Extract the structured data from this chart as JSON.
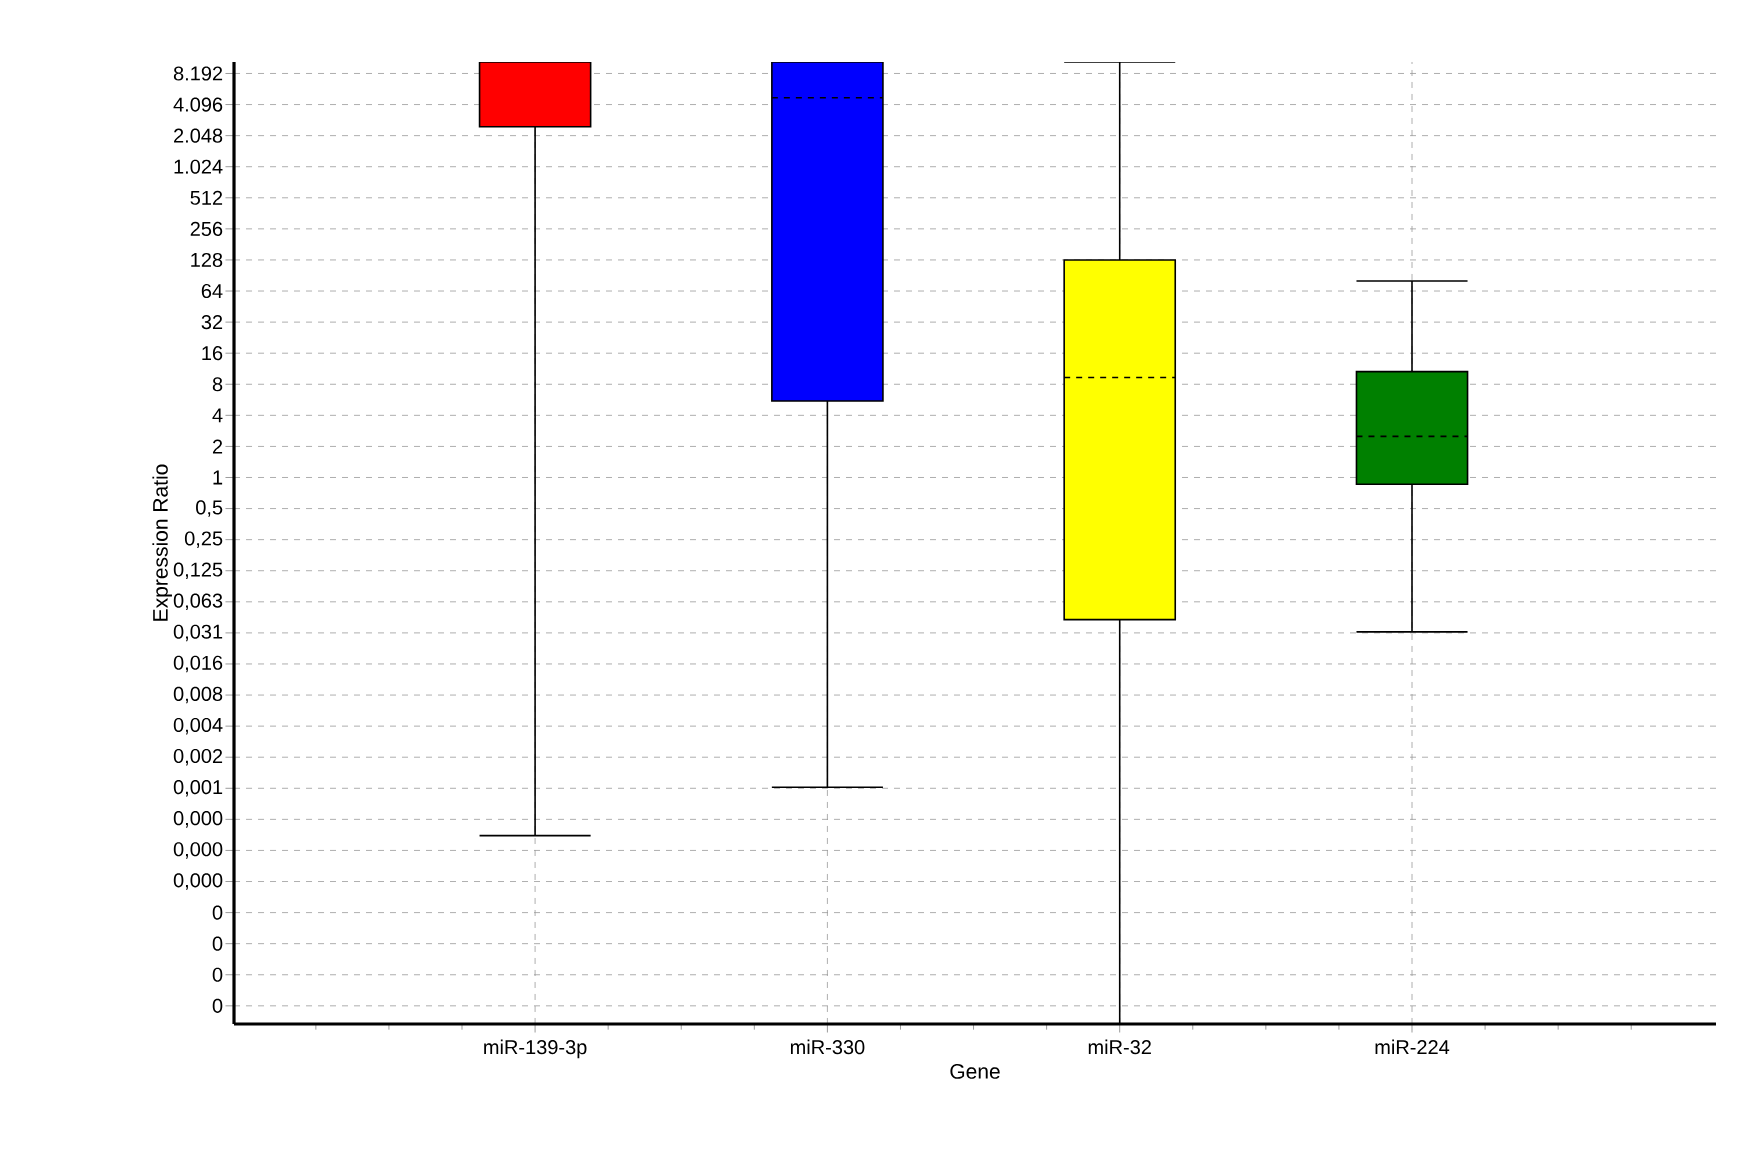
{
  "chart_data": {
    "type": "box",
    "xlabel": "Gene",
    "ylabel": "Expression Ratio",
    "categories": [
      "miR-139-3p",
      "miR-330",
      "miR-32",
      "miR-224"
    ],
    "colors": [
      "#ff0000",
      "#0000ff",
      "#ffff00",
      "#008000"
    ],
    "boxes": [
      {
        "low": 0.00034,
        "q1": 2500,
        "median": null,
        "q3": 10585,
        "high": null
      },
      {
        "low": 0.001,
        "q1": 5.5,
        "median": 4770,
        "q3": 10585,
        "high": null
      },
      {
        "low": 5.09e-06,
        "q1": 0.042,
        "median": 9.3,
        "q3": 128,
        "high": 10585
      },
      {
        "low": 0.032,
        "q1": 0.86,
        "median": 2.5,
        "q3": 10.6,
        "high": 80
      }
    ],
    "log": "y",
    "grid": true,
    "ylim": [
      5.09e-06,
      10585
    ],
    "yticks": [
      {
        "value": 8192,
        "label": "8.192"
      },
      {
        "value": 4096,
        "label": "4.096"
      },
      {
        "value": 2048,
        "label": "2.048"
      },
      {
        "value": 1024,
        "label": "1.024"
      },
      512,
      256,
      128,
      64,
      32,
      16,
      8,
      4,
      2,
      1,
      {
        "value": 0.5,
        "label": "0,5"
      },
      {
        "value": 0.25,
        "label": "0,25"
      },
      {
        "value": 0.125,
        "label": "0,125"
      },
      {
        "value": 0.0625,
        "label": "0,063"
      },
      {
        "value": 0.03125,
        "label": "0,031"
      },
      {
        "value": 0.015625,
        "label": "0,016"
      },
      {
        "value": 0.0078125,
        "label": "0,008"
      },
      {
        "value": 0.00390625,
        "label": "0,004"
      },
      {
        "value": 0.001953125,
        "label": "0,002"
      },
      {
        "value": 0.0009765625,
        "label": "0,001"
      },
      {
        "value": 0.00048828125,
        "label": "0,000"
      },
      {
        "value": 0.000244140625,
        "label": "0,000"
      },
      {
        "value": 0.0001220703125,
        "label": "0,000"
      },
      {
        "value": 6.103515625e-05,
        "label": "0"
      },
      {
        "value": 3.0517578125e-05,
        "label": "0"
      },
      {
        "value": 1.52587890625e-05,
        "label": "0"
      },
      {
        "value": 7.62939453125e-06,
        "label": "0"
      }
    ]
  }
}
